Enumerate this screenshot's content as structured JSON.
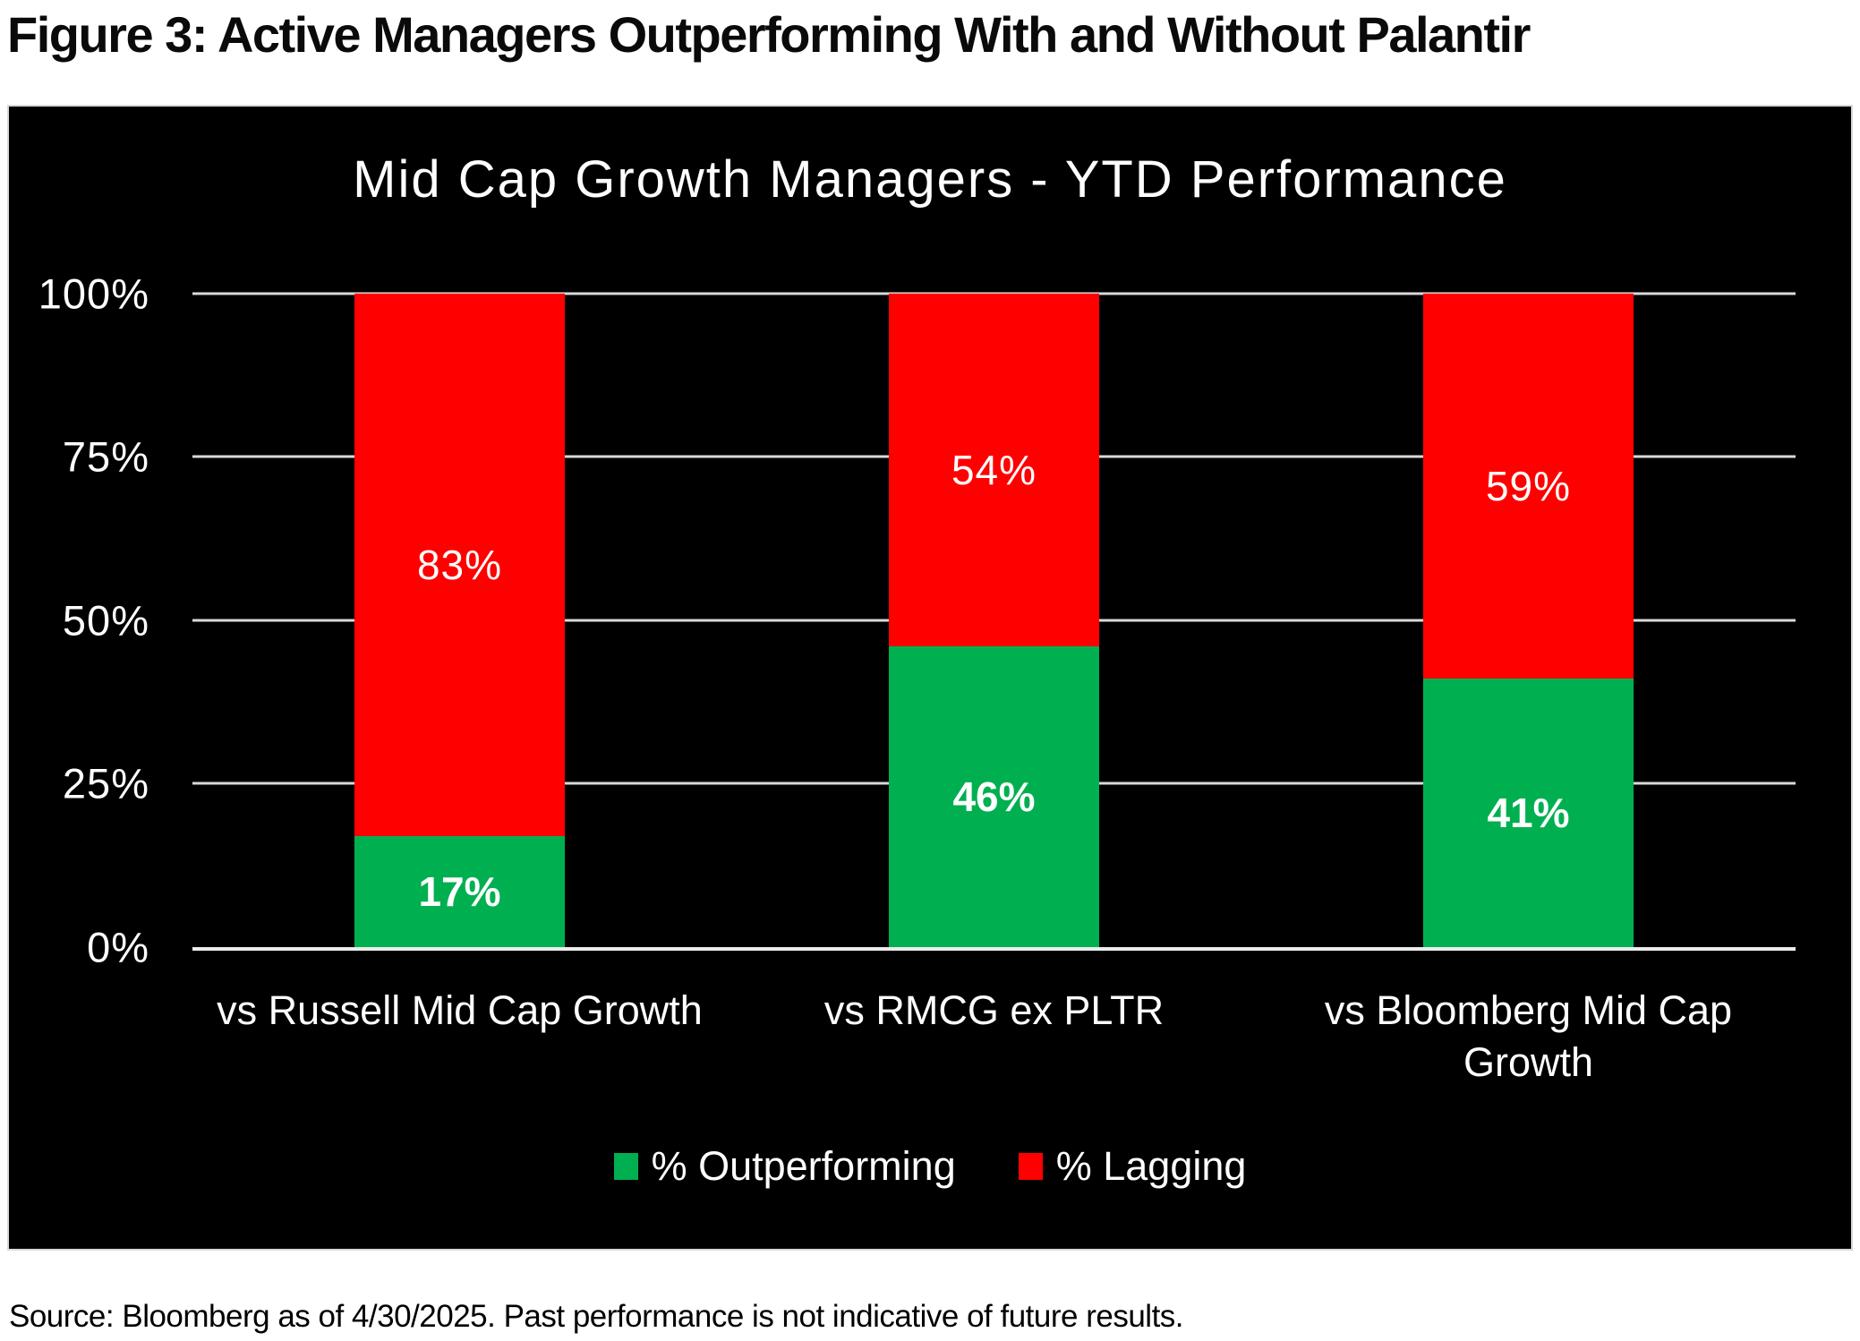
{
  "figure_title": "Figure 3: Active Managers Outperforming With and Without Palantir",
  "source_note": "Source: Bloomberg as of 4/30/2025. Past performance is not indicative of future results.",
  "chart_data": {
    "type": "bar",
    "stacked": true,
    "title": "Mid Cap Growth Managers - YTD Performance",
    "categories": [
      "vs Russell Mid Cap Growth",
      "vs RMCG ex PLTR",
      "vs Bloomberg Mid Cap\nGrowth"
    ],
    "series": [
      {
        "name": "% Outperforming",
        "key": "outperforming",
        "color": "#00B050",
        "values": [
          17,
          46,
          41
        ],
        "labels": [
          "17%",
          "46%",
          "41%"
        ]
      },
      {
        "name": "% Lagging",
        "key": "lagging",
        "color": "#FF0000",
        "values": [
          83,
          54,
          59
        ],
        "labels": [
          "83%",
          "54%",
          "59%"
        ]
      }
    ],
    "y_axis": {
      "min": 0,
      "max": 100,
      "tick_values": [
        0,
        25,
        50,
        75,
        100
      ],
      "tick_labels": [
        "0%",
        "25%",
        "50%",
        "75%",
        "100%"
      ]
    },
    "grid": true,
    "legend_position": "bottom",
    "plot_background": "#000000",
    "text_color": "#FFFFFF",
    "gridline_color": "#D9D9D9",
    "bar_width_fraction": 0.395
  }
}
